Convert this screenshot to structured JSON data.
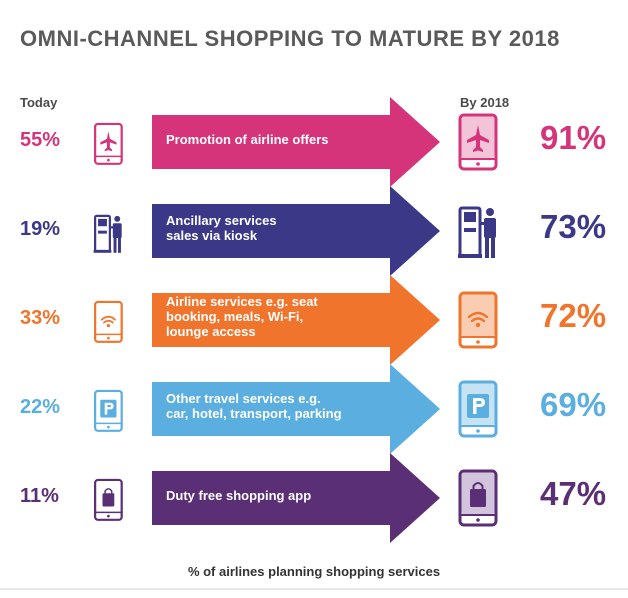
{
  "title": "OMNI-CHANNEL SHOPPING TO MATURE BY 2018",
  "headers": {
    "today": "Today",
    "by2018": "By 2018"
  },
  "footer": "% of airlines planning shopping services",
  "chart_data": {
    "type": "table",
    "title": "OMNI-CHANNEL SHOPPING TO MATURE BY 2018",
    "columns": [
      "Today",
      "By 2018"
    ],
    "value_label": "% of airlines planning shopping services",
    "rows": [
      {
        "label": "Promotion of airline offers",
        "today": "55%",
        "by2018": "91%",
        "icon": "tablet-airplane-icon",
        "color": "#d6347a",
        "pale": "#f3c4d8"
      },
      {
        "label": "Ancillary services sales via kiosk",
        "today": "19%",
        "by2018": "73%",
        "icon": "kiosk-person-icon",
        "color": "#3b3887",
        "pale": "#c3c2dc"
      },
      {
        "label": "Airline services e.g. seat booking, meals, Wi-Fi, lounge access",
        "today": "33%",
        "by2018": "72%",
        "icon": "tablet-wifi-icon",
        "color": "#f0742c",
        "pale": "#f9cdb1"
      },
      {
        "label": "Other travel services e.g. car, hotel, transport, parking",
        "today": "22%",
        "by2018": "69%",
        "icon": "tablet-parking-icon",
        "color": "#5aaee0",
        "pale": "#c6e3f4"
      },
      {
        "label": "Duty free shopping app",
        "today": "11%",
        "by2018": "47%",
        "icon": "tablet-shopping-bag-icon",
        "color": "#5a2f75",
        "pale": "#d3c4dd"
      }
    ]
  }
}
